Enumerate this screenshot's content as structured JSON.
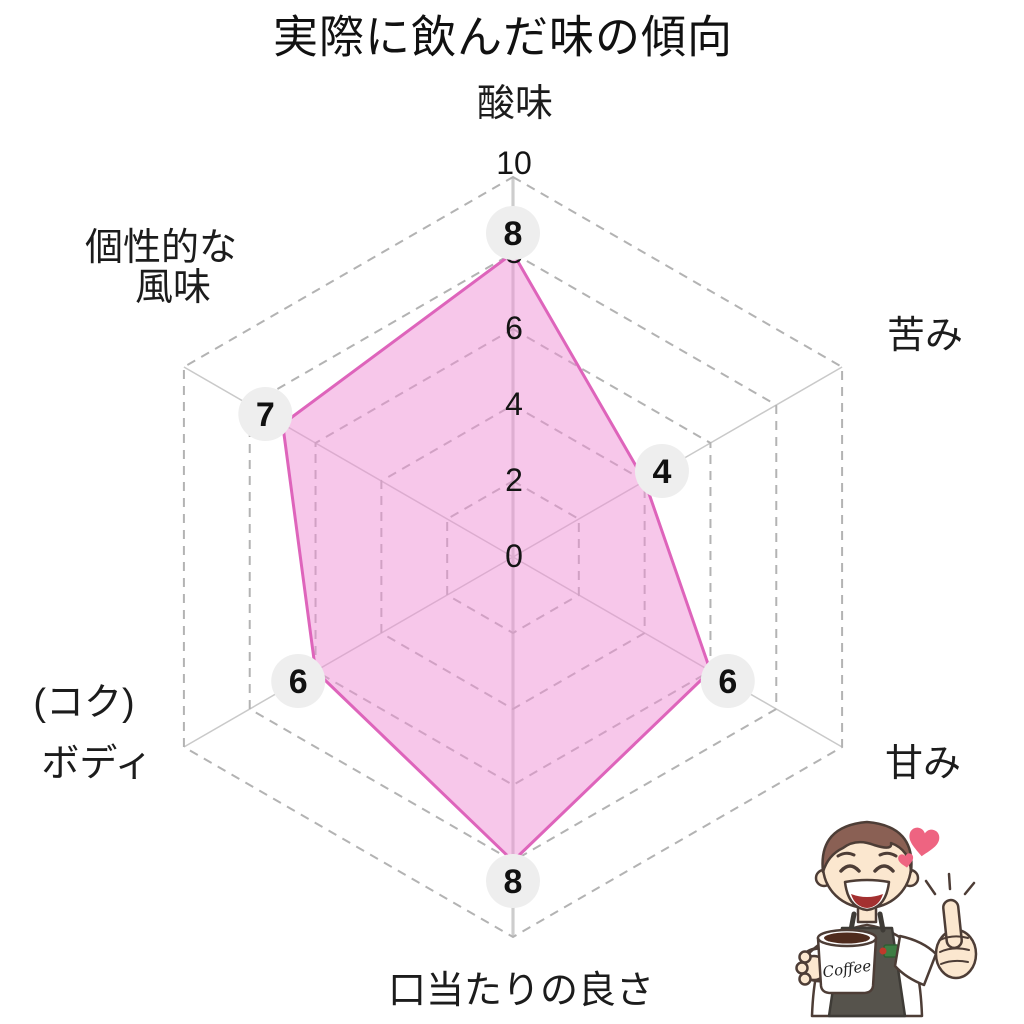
{
  "title": "実際に飲んだ味の傾向",
  "chart_data": {
    "type": "radar",
    "categories": [
      "酸味",
      "苦み",
      "甘み",
      "口当たりの良さ",
      "(コク) ボディ",
      "個性的な風味"
    ],
    "values": [
      8,
      4,
      6,
      8,
      6,
      7
    ],
    "axis_range": [
      0,
      10
    ],
    "ticks": [
      0,
      2,
      4,
      6,
      8,
      10
    ],
    "grid": "dashed-hexagon",
    "legend": "none",
    "colors": {
      "fill": "#f090d6",
      "fill_opacity": 0.5,
      "stroke": "#de64bb",
      "ring": "#b3b3b3",
      "spoke": "#c9c9c9",
      "main_axis": "#d9d9d9",
      "marker_bg": "#eeeeee",
      "text": "#141414"
    }
  },
  "axis_labels": {
    "top": "酸味",
    "upper_right": "苦み",
    "lower_right": "甘み",
    "bottom": "口当たりの良さ",
    "lower_left_line1": "(コク)",
    "lower_left_line2": "ボディ",
    "upper_left_line1": "個性的な",
    "upper_left_line2": "風味"
  },
  "illustration": {
    "description": "smiling barista with coffee mug and thumbs up, hearts",
    "mug_text": "Coffee"
  }
}
